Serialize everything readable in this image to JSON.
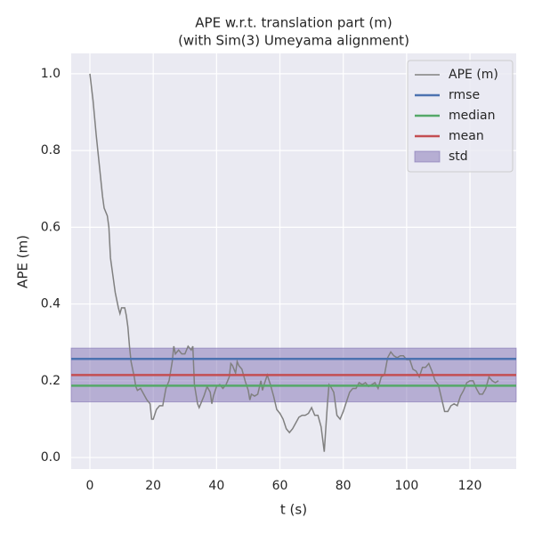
{
  "chart_data": {
    "type": "line",
    "title": "APE w.r.t. translation part (m)",
    "subtitle": "(with Sim(3) Umeyama alignment)",
    "x_label": "t (s)",
    "y_label": "APE (m)",
    "xlim": [
      -5.9,
      134.6
    ],
    "ylim": [
      -0.03,
      1.053
    ],
    "xticks": [
      0,
      20,
      40,
      60,
      80,
      100,
      120
    ],
    "yticks": [
      {
        "value": 0,
        "label": "0.0"
      },
      0.2,
      0.4,
      0.6,
      0.8,
      {
        "value": 1,
        "label": "1.0"
      }
    ],
    "grid": true,
    "legend": "upper right",
    "series": [
      {
        "name": "APE (m)",
        "color": "#808080",
        "x": [
          0,
          1,
          2,
          3,
          4,
          4.5,
          5.5,
          6,
          6.5,
          7.5,
          8,
          9,
          9.5,
          10,
          11,
          11.5,
          12,
          12.5,
          13,
          14,
          14.5,
          15,
          16,
          17,
          18,
          19,
          19.5,
          20,
          21,
          22,
          23,
          24,
          25,
          26,
          26.5,
          27,
          28,
          29,
          30,
          31,
          32,
          32.5,
          33,
          34,
          34.5,
          35,
          36,
          37,
          38,
          38.5,
          39,
          40,
          41,
          42,
          43,
          44,
          44.5,
          45,
          46,
          46.5,
          47,
          48,
          49,
          50,
          50.5,
          51,
          52,
          53,
          54,
          54.5,
          55,
          56,
          57,
          58,
          59,
          60,
          61,
          62,
          63,
          64,
          65,
          66,
          67,
          68,
          69,
          70,
          71,
          72,
          73,
          74,
          75,
          75.5,
          76,
          77,
          78,
          79,
          80,
          81,
          82,
          83,
          84,
          85,
          86,
          87,
          88,
          89,
          90,
          91,
          92,
          93,
          94,
          95,
          96,
          97,
          98,
          99,
          100,
          101,
          102,
          103,
          104,
          105,
          106,
          107,
          108,
          109,
          110,
          111,
          112,
          113,
          114,
          115,
          116,
          117,
          118,
          119,
          120,
          121,
          122,
          123,
          124,
          125,
          126,
          127,
          128,
          129
        ],
        "values": [
          1.0,
          0.93,
          0.84,
          0.76,
          0.68,
          0.65,
          0.63,
          0.6,
          0.52,
          0.46,
          0.43,
          0.39,
          0.375,
          0.39,
          0.39,
          0.37,
          0.34,
          0.29,
          0.25,
          0.21,
          0.185,
          0.175,
          0.18,
          0.165,
          0.15,
          0.14,
          0.1,
          0.1,
          0.125,
          0.135,
          0.135,
          0.18,
          0.2,
          0.25,
          0.29,
          0.27,
          0.28,
          0.27,
          0.27,
          0.29,
          0.28,
          0.29,
          0.19,
          0.14,
          0.13,
          0.14,
          0.16,
          0.185,
          0.17,
          0.14,
          0.16,
          0.185,
          0.19,
          0.18,
          0.19,
          0.21,
          0.245,
          0.24,
          0.22,
          0.25,
          0.24,
          0.23,
          0.2,
          0.175,
          0.15,
          0.165,
          0.16,
          0.165,
          0.2,
          0.175,
          0.19,
          0.215,
          0.19,
          0.16,
          0.125,
          0.115,
          0.1,
          0.075,
          0.065,
          0.075,
          0.09,
          0.105,
          0.11,
          0.11,
          0.115,
          0.13,
          0.11,
          0.11,
          0.08,
          0.015,
          0.14,
          0.19,
          0.185,
          0.17,
          0.11,
          0.1,
          0.12,
          0.145,
          0.17,
          0.18,
          0.18,
          0.195,
          0.19,
          0.195,
          0.185,
          0.19,
          0.195,
          0.18,
          0.21,
          0.215,
          0.26,
          0.275,
          0.265,
          0.26,
          0.265,
          0.265,
          0.255,
          0.255,
          0.23,
          0.225,
          0.21,
          0.235,
          0.235,
          0.245,
          0.225,
          0.2,
          0.19,
          0.155,
          0.12,
          0.12,
          0.135,
          0.14,
          0.135,
          0.16,
          0.175,
          0.195,
          0.2,
          0.2,
          0.18,
          0.165,
          0.165,
          0.18,
          0.21,
          0.2,
          0.195,
          0.2
        ]
      }
    ],
    "hlines": [
      {
        "name": "rmse",
        "color": "#4c72b0",
        "value": 0.257
      },
      {
        "name": "median",
        "color": "#55a868",
        "value": 0.187
      },
      {
        "name": "mean",
        "color": "#c44e52",
        "value": 0.215
      }
    ],
    "std": {
      "name": "std",
      "color": "#8172b3",
      "value": 0.07
    }
  }
}
